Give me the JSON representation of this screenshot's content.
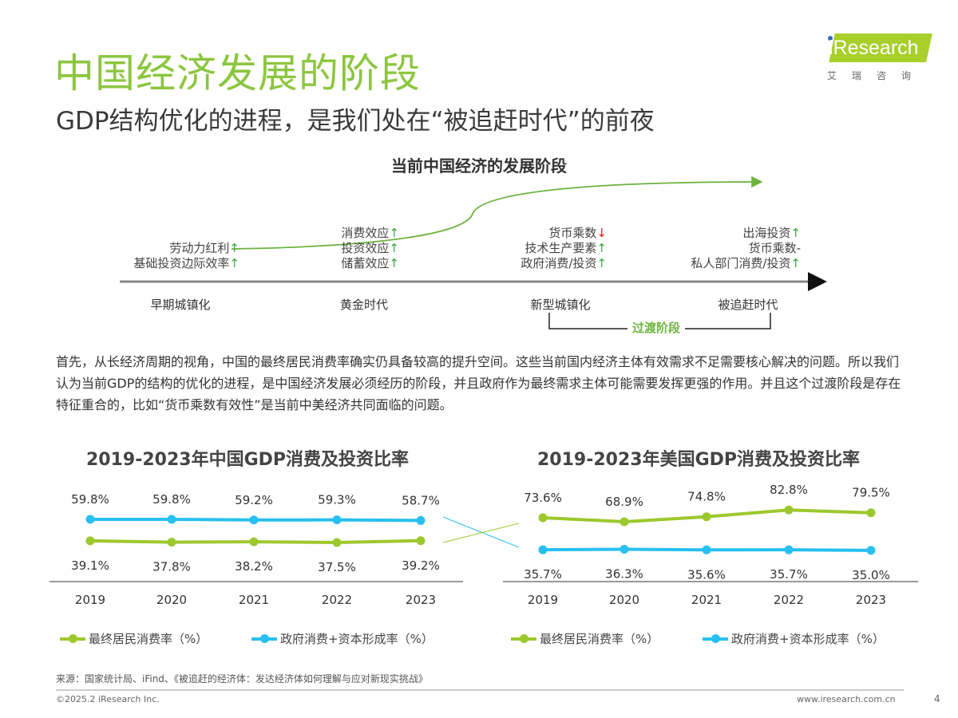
{
  "header": {
    "title": "中国经济发展的阶段",
    "subtitle": "GDP结构优化的进程，是我们处在“被追赶时代”的前夜"
  },
  "logo": {
    "word": "iResearch",
    "cn": "艾瑞咨询"
  },
  "diagram": {
    "title": "当前中国经济的发展阶段",
    "stages": [
      {
        "label": "早期城镇化",
        "factors": [
          {
            "text": "劳动力红利",
            "trend": "↑"
          },
          {
            "text": "基础投资边际效率",
            "trend": "↑"
          }
        ]
      },
      {
        "label": "黄金时代",
        "factors": [
          {
            "text": "消费效应",
            "trend": "↑"
          },
          {
            "text": "投资效应",
            "trend": "↑"
          },
          {
            "text": "储蓄效应",
            "trend": "↑"
          }
        ]
      },
      {
        "label": "新型城镇化",
        "factors": [
          {
            "text": "货币乘数",
            "trend": "↓"
          },
          {
            "text": "技术生产要素",
            "trend": "↑"
          },
          {
            "text": "政府消费/投资",
            "trend": "↑"
          }
        ]
      },
      {
        "label": "被追赶时代",
        "factors": [
          {
            "text": "出海投资",
            "trend": "↑"
          },
          {
            "text": "货币乘数",
            "trend": "-"
          },
          {
            "text": "私人部门消费/投资",
            "trend": "↑"
          }
        ]
      }
    ],
    "transition_label": "过渡阶段",
    "colors": {
      "curve": "#6cb33e",
      "up": "#3aa845",
      "down": "#e02020"
    }
  },
  "paragraph": "首先，从长经济周期的视角，中国的最终居民消费率确实仍具备较高的提升空间。这些当前国内经济主体有效需求不足需要核心解决的问题。所以我们认为当前GDP的结构的优化的进程，是中国经济发展必须经历的阶段，并且政府作为最终需求主体可能需要发挥更强的作用。并且这个过渡阶段是存在特征重合的，比如“货币乘数有效性”是当前中美经济共同面临的问题。",
  "chart_data": [
    {
      "type": "line",
      "title": "2019-2023年中国GDP消费及投资比率",
      "categories": [
        "2019",
        "2020",
        "2021",
        "2022",
        "2023"
      ],
      "series": [
        {
          "name": "最终居民消费率（%）",
          "color": "#9dc82d",
          "values": [
            39.1,
            37.8,
            38.2,
            37.5,
            39.2
          ],
          "labels": [
            "39.1%",
            "37.8%",
            "38.2%",
            "37.5%",
            "39.2%"
          ]
        },
        {
          "name": "政府消费+资本形成率（%）",
          "color": "#27c0f0",
          "values": [
            59.8,
            59.8,
            59.2,
            59.3,
            58.7
          ],
          "labels": [
            "59.8%",
            "59.8%",
            "59.2%",
            "59.3%",
            "58.7%"
          ]
        }
      ],
      "legend": "bottom",
      "grid": false
    },
    {
      "type": "line",
      "title": "2019-2023年美国GDP消费及投资比率",
      "categories": [
        "2019",
        "2020",
        "2021",
        "2022",
        "2023"
      ],
      "series": [
        {
          "name": "最终居民消费率（%）",
          "color": "#9dc82d",
          "values": [
            73.6,
            68.9,
            74.8,
            82.8,
            79.5
          ],
          "labels": [
            "73.6%",
            "68.9%",
            "74.8%",
            "82.8%",
            "79.5%"
          ]
        },
        {
          "name": "政府消费+资本形成率（%）",
          "color": "#27c0f0",
          "values": [
            35.7,
            36.3,
            35.6,
            35.7,
            35.0
          ],
          "labels": [
            "35.7%",
            "36.3%",
            "35.6%",
            "35.7%",
            "35.0%"
          ]
        }
      ],
      "legend": "bottom",
      "grid": false
    }
  ],
  "footer": {
    "source": "来源：国家统计局、iFind、《被追赶的经济体：发达经济体如何理解与应对新现实挑战》",
    "copyright": "©2025.2 iResearch Inc.",
    "url": "www.iresearch.com.cn",
    "page": "4"
  }
}
